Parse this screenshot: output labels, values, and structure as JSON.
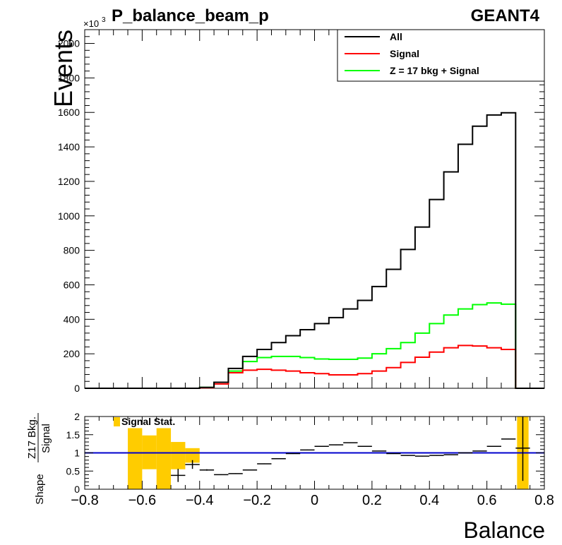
{
  "chart_data": [
    {
      "type": "histogram-step",
      "title": "P_balance_beam_p",
      "corner_label": "GEANT4",
      "ylabel": "Events",
      "y_multiplier": "×10",
      "y_multiplier_exp": "3",
      "xlim": [
        -0.8,
        0.8
      ],
      "ylim": [
        0,
        2080
      ],
      "y_ticks": [
        0,
        200,
        400,
        600,
        800,
        1000,
        1200,
        1400,
        1600,
        1800,
        2000
      ],
      "y_tick_labels": [
        "0",
        "200",
        "400",
        "600",
        "800",
        "1000",
        "1200",
        "1400",
        "1600",
        "1800",
        "2000"
      ],
      "bin_edges": [
        -0.8,
        -0.75,
        -0.7,
        -0.65,
        -0.6,
        -0.55,
        -0.5,
        -0.45,
        -0.4,
        -0.35,
        -0.3,
        -0.25,
        -0.2,
        -0.15,
        -0.1,
        -0.05,
        0.0,
        0.05,
        0.1,
        0.15,
        0.2,
        0.25,
        0.3,
        0.35,
        0.4,
        0.45,
        0.5,
        0.55,
        0.6,
        0.65,
        0.7,
        0.75,
        0.8
      ],
      "series": [
        {
          "name": "All",
          "color": "#000000",
          "values": [
            0,
            0,
            0,
            0,
            0,
            0,
            0,
            0,
            5,
            35,
            115,
            185,
            225,
            265,
            305,
            340,
            375,
            410,
            460,
            510,
            590,
            690,
            805,
            935,
            1095,
            1255,
            1415,
            1520,
            1585,
            1598,
            0,
            0
          ]
        },
        {
          "name": "Signal",
          "color": "#ff0000",
          "values": [
            0,
            0,
            0,
            0,
            0,
            0,
            0,
            0,
            3,
            25,
            90,
            105,
            110,
            105,
            100,
            90,
            85,
            78,
            78,
            85,
            100,
            120,
            150,
            180,
            210,
            235,
            248,
            245,
            235,
            225,
            0,
            0
          ]
        },
        {
          "name": "Z = 17 bkg + Signal",
          "color": "#00ff00",
          "values": [
            0,
            0,
            0,
            0,
            0,
            0,
            0,
            0,
            5,
            35,
            100,
            155,
            178,
            185,
            185,
            178,
            170,
            168,
            168,
            175,
            200,
            230,
            265,
            320,
            375,
            425,
            460,
            485,
            495,
            488,
            0,
            0
          ]
        }
      ],
      "legend_position": "top-right"
    },
    {
      "type": "ratio",
      "ylabel_numerator": "Z17 Bkg.",
      "ylabel_denominator": "Signal",
      "ylabel_prefix": "Shape",
      "xlabel": "Balance",
      "xlim": [
        -0.8,
        0.8
      ],
      "ylim": [
        0,
        2
      ],
      "x_tick_labels": [
        "−0.8",
        "−0.6",
        "−0.4",
        "−0.2",
        "0",
        "0.2",
        "0.4",
        "0.6",
        "0.8"
      ],
      "y_tick_labels": [
        "0",
        "0.5",
        "1",
        "1.5",
        "2"
      ],
      "reference_line": {
        "y": 1,
        "color": "#0000cc"
      },
      "band_label": "Signal Stat.",
      "band_color": "#ffcc00",
      "band": [
        {
          "x0": -0.65,
          "x1": -0.6,
          "lo": 0,
          "hi": 1.68
        },
        {
          "x0": -0.6,
          "x1": -0.55,
          "lo": 0.55,
          "hi": 1.48
        },
        {
          "x0": -0.55,
          "x1": -0.5,
          "lo": 0,
          "hi": 1.68
        },
        {
          "x0": -0.5,
          "x1": -0.45,
          "lo": 0.55,
          "hi": 1.3
        },
        {
          "x0": -0.45,
          "x1": -0.4,
          "lo": 0.73,
          "hi": 1.13
        },
        {
          "x0": 0.705,
          "x1": 0.725,
          "lo": 0,
          "hi": 2
        },
        {
          "x0": 0.725,
          "x1": 0.745,
          "lo": 0,
          "hi": 2
        }
      ],
      "points": [
        {
          "x0": -0.5,
          "x1": -0.45,
          "y": 0.38,
          "err": 0.18
        },
        {
          "x0": -0.45,
          "x1": -0.4,
          "y": 0.68,
          "err": 0.12
        },
        {
          "x0": -0.4,
          "x1": -0.35,
          "y": 0.53,
          "err": 0.02
        },
        {
          "x0": -0.35,
          "x1": -0.3,
          "y": 0.4,
          "err": 0.01
        },
        {
          "x0": -0.3,
          "x1": -0.25,
          "y": 0.43,
          "err": 0.01
        },
        {
          "x0": -0.25,
          "x1": -0.2,
          "y": 0.53,
          "err": 0.01
        },
        {
          "x0": -0.2,
          "x1": -0.15,
          "y": 0.7,
          "err": 0.01
        },
        {
          "x0": -0.15,
          "x1": -0.1,
          "y": 0.84,
          "err": 0.01
        },
        {
          "x0": -0.1,
          "x1": -0.05,
          "y": 0.98,
          "err": 0.01
        },
        {
          "x0": -0.05,
          "x1": 0.0,
          "y": 1.08,
          "err": 0.01
        },
        {
          "x0": 0.0,
          "x1": 0.05,
          "y": 1.18,
          "err": 0.01
        },
        {
          "x0": 0.05,
          "x1": 0.1,
          "y": 1.22,
          "err": 0.01
        },
        {
          "x0": 0.1,
          "x1": 0.15,
          "y": 1.28,
          "err": 0.01
        },
        {
          "x0": 0.15,
          "x1": 0.2,
          "y": 1.18,
          "err": 0.01
        },
        {
          "x0": 0.2,
          "x1": 0.25,
          "y": 1.05,
          "err": 0.01
        },
        {
          "x0": 0.25,
          "x1": 0.3,
          "y": 0.98,
          "err": 0.01
        },
        {
          "x0": 0.3,
          "x1": 0.35,
          "y": 0.93,
          "err": 0.01
        },
        {
          "x0": 0.35,
          "x1": 0.4,
          "y": 0.91,
          "err": 0.01
        },
        {
          "x0": 0.4,
          "x1": 0.45,
          "y": 0.93,
          "err": 0.01
        },
        {
          "x0": 0.45,
          "x1": 0.5,
          "y": 0.95,
          "err": 0.01
        },
        {
          "x0": 0.5,
          "x1": 0.55,
          "y": 1.0,
          "err": 0.01
        },
        {
          "x0": 0.55,
          "x1": 0.6,
          "y": 1.05,
          "err": 0.01
        },
        {
          "x0": 0.6,
          "x1": 0.65,
          "y": 1.18,
          "err": 0.01
        },
        {
          "x0": 0.65,
          "x1": 0.7,
          "y": 1.38,
          "err": 0.01
        },
        {
          "x0": 0.7,
          "x1": 0.75,
          "y": 1.13,
          "err": 0.9
        }
      ]
    }
  ]
}
